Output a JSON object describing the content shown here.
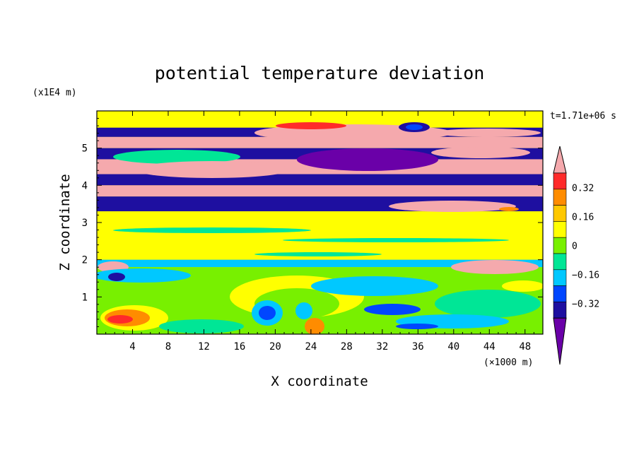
{
  "chart_data": {
    "type": "heatmap",
    "title": "potential temperature deviation",
    "xlabel": "X coordinate",
    "ylabel": "Z coordinate",
    "x_unit": "(×1000 m)",
    "y_unit": "(x1E4 m)",
    "time_label": "t=1.71e+06 s",
    "xlim": [
      0,
      50
    ],
    "ylim": [
      0,
      6
    ],
    "x_ticks": [
      "4",
      "8",
      "12",
      "16",
      "20",
      "24",
      "28",
      "32",
      "36",
      "40",
      "44",
      "48"
    ],
    "y_ticks": [
      "1",
      "2",
      "3",
      "4",
      "5"
    ],
    "colorbar": {
      "levels": [
        -0.4,
        -0.32,
        -0.24,
        -0.16,
        -0.08,
        0,
        0.08,
        0.16,
        0.24,
        0.32,
        0.4
      ],
      "tick_labels": [
        "0.32",
        "0.16",
        "0",
        "−0.16",
        "−0.32"
      ],
      "tick_values": [
        0.32,
        0.16,
        0,
        -0.16,
        -0.32
      ],
      "colors": [
        "#6a00a8",
        "#1e0fa0",
        "#0046ff",
        "#00c8ff",
        "#00e696",
        "#78f000",
        "#ffff00",
        "#ffc800",
        "#ff8c00",
        "#ff2a2a",
        "#f5a9ad"
      ]
    },
    "field_bands": [
      {
        "z": [
          5.55,
          5.9
        ],
        "value": 0.05
      },
      {
        "z": [
          5.3,
          5.55
        ],
        "value": -0.36
      },
      {
        "z": [
          5.0,
          5.3
        ],
        "value": 0.44
      },
      {
        "z": [
          4.7,
          5.0
        ],
        "value": -0.38
      },
      {
        "z": [
          4.3,
          4.7
        ],
        "value": 0.44
      },
      {
        "z": [
          4.0,
          4.3
        ],
        "value": -0.38
      },
      {
        "z": [
          3.7,
          4.0
        ],
        "value": 0.44
      },
      {
        "z": [
          3.3,
          3.7
        ],
        "value": -0.38
      },
      {
        "z": [
          2.0,
          3.3
        ],
        "value": 0.03
      },
      {
        "z": [
          1.8,
          2.0
        ],
        "value": -0.2
      },
      {
        "z": [
          0.0,
          1.8
        ],
        "value": -0.06
      }
    ]
  }
}
